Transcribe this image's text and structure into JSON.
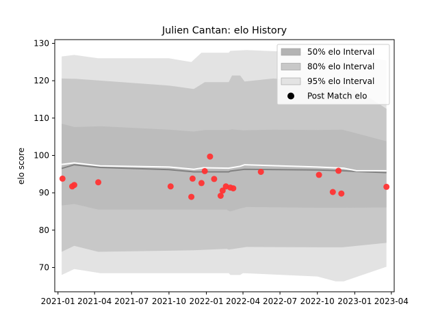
{
  "chart_data": {
    "type": "line",
    "title": "Julien Cantan: elo History",
    "xlabel": "",
    "ylabel": "elo score",
    "xlim": [
      "2020-12-24",
      "2023-04-08"
    ],
    "ylim": [
      63.5,
      131
    ],
    "x_ticks": [
      "2021-01",
      "2021-04",
      "2021-07",
      "2021-10",
      "2022-01",
      "2022-04",
      "2022-07",
      "2022-10",
      "2023-01",
      "2023-04"
    ],
    "y_ticks": [
      70,
      80,
      90,
      100,
      110,
      120,
      130
    ],
    "grid": false,
    "legend_position": "top-right",
    "legend": [
      {
        "label": "50% elo Interval",
        "kind": "patch",
        "color": "#b3b3b3"
      },
      {
        "label": "80% elo Interval",
        "kind": "patch",
        "color": "#c8c8c8"
      },
      {
        "label": "95% elo Interval",
        "kind": "patch",
        "color": "#e3e3e3"
      },
      {
        "label": "Post Match elo",
        "kind": "marker",
        "color": "#000000"
      }
    ],
    "bands": [
      {
        "name": "95% elo Interval",
        "color": "#e3e3e3",
        "opacity": 1,
        "upper": [
          [
            "2021-01-10",
            126.5
          ],
          [
            "2021-02-10",
            126.9
          ],
          [
            "2021-04-10",
            126.0
          ],
          [
            "2021-10-01",
            126.0
          ],
          [
            "2021-11-25",
            125.0
          ],
          [
            "2021-12-20",
            127.5
          ],
          [
            "2022-02-25",
            127.5
          ],
          [
            "2022-03-01",
            128.0
          ],
          [
            "2022-04-10",
            128.2
          ],
          [
            "2022-06-15",
            127.9
          ],
          [
            "2022-10-01",
            127.6
          ],
          [
            "2022-12-10",
            126.5
          ],
          [
            "2023-02-01",
            126.0
          ],
          [
            "2023-03-20",
            125.5
          ]
        ],
        "lower": [
          [
            "2021-01-10",
            68.0
          ],
          [
            "2021-02-10",
            69.6
          ],
          [
            "2021-04-15",
            68.5
          ],
          [
            "2021-12-10",
            68.5
          ],
          [
            "2022-02-25",
            68.5
          ],
          [
            "2022-03-01",
            68.0
          ],
          [
            "2022-03-25",
            68.0
          ],
          [
            "2022-04-01",
            68.5
          ],
          [
            "2022-10-01",
            67.6
          ],
          [
            "2022-11-15",
            66.3
          ],
          [
            "2022-12-05",
            66.3
          ],
          [
            "2023-03-20",
            70.2
          ]
        ]
      },
      {
        "name": "80% elo Interval",
        "color": "#c8c8c8",
        "opacity": 1,
        "upper": [
          [
            "2021-01-10",
            120.6
          ],
          [
            "2021-02-15",
            120.5
          ],
          [
            "2021-10-01",
            118.7
          ],
          [
            "2021-12-01",
            117.8
          ],
          [
            "2021-12-28",
            119.6
          ],
          [
            "2022-02-25",
            119.6
          ],
          [
            "2022-03-05",
            121.4
          ],
          [
            "2022-03-25",
            121.4
          ],
          [
            "2022-04-05",
            119.8
          ],
          [
            "2022-06-15",
            120.6
          ],
          [
            "2022-10-01",
            119.6
          ],
          [
            "2022-12-01",
            118.8
          ],
          [
            "2023-02-01",
            115.8
          ],
          [
            "2023-03-20",
            112.5
          ]
        ],
        "lower": [
          [
            "2021-01-10",
            74.2
          ],
          [
            "2021-02-10",
            75.8
          ],
          [
            "2021-04-10",
            74.2
          ],
          [
            "2021-12-01",
            74.6
          ],
          [
            "2022-02-20",
            75.0
          ],
          [
            "2022-02-25",
            74.8
          ],
          [
            "2022-04-10",
            75.5
          ],
          [
            "2022-10-01",
            75.4
          ],
          [
            "2022-12-01",
            75.4
          ],
          [
            "2023-03-20",
            76.6
          ]
        ]
      },
      {
        "name": "50% elo Interval",
        "color": "#b3b3b3",
        "opacity": 0.55,
        "upper": [
          [
            "2021-01-10",
            108.5
          ],
          [
            "2021-02-10",
            107.6
          ],
          [
            "2021-04-15",
            107.8
          ],
          [
            "2021-10-01",
            106.9
          ],
          [
            "2021-12-01",
            106.4
          ],
          [
            "2021-12-28",
            106.8
          ],
          [
            "2022-02-25",
            106.8
          ],
          [
            "2022-03-05",
            107.0
          ],
          [
            "2022-04-01",
            106.7
          ],
          [
            "2022-06-15",
            106.9
          ],
          [
            "2022-10-01",
            106.8
          ],
          [
            "2022-12-01",
            106.9
          ],
          [
            "2023-03-20",
            103.8
          ]
        ],
        "lower": [
          [
            "2021-01-10",
            86.6
          ],
          [
            "2021-02-10",
            87.0
          ],
          [
            "2021-04-10",
            85.5
          ],
          [
            "2021-12-01",
            85.5
          ],
          [
            "2022-02-20",
            85.5
          ],
          [
            "2022-02-28",
            85.0
          ],
          [
            "2022-03-25",
            85.8
          ],
          [
            "2022-04-10",
            86.2
          ],
          [
            "2022-10-01",
            86.0
          ],
          [
            "2022-12-01",
            86.0
          ],
          [
            "2023-03-20",
            86.1
          ]
        ]
      }
    ],
    "series": [
      {
        "name": "",
        "kind": "line",
        "color": "#808080",
        "points": [
          [
            "2021-01-10",
            96.5
          ],
          [
            "2021-02-10",
            97.5
          ],
          [
            "2021-04-15",
            96.8
          ],
          [
            "2021-10-01",
            96.2
          ],
          [
            "2021-12-01",
            95.6
          ],
          [
            "2022-02-25",
            95.6
          ],
          [
            "2022-03-01",
            95.8
          ],
          [
            "2022-04-05",
            96.3
          ],
          [
            "2022-10-01",
            96.1
          ],
          [
            "2022-12-01",
            95.9
          ],
          [
            "2023-02-01",
            95.6
          ],
          [
            "2023-03-20",
            95.4
          ]
        ]
      },
      {
        "name": "",
        "kind": "line",
        "color": "#ffffff",
        "points": [
          [
            "2021-01-10",
            97.6
          ],
          [
            "2021-02-10",
            98.0
          ],
          [
            "2021-04-15",
            97.2
          ],
          [
            "2021-10-01",
            96.9
          ],
          [
            "2021-12-01",
            96.3
          ],
          [
            "2021-12-25",
            96.7
          ],
          [
            "2022-02-25",
            96.6
          ],
          [
            "2022-03-25",
            97.1
          ],
          [
            "2022-04-05",
            97.5
          ],
          [
            "2022-10-01",
            96.9
          ],
          [
            "2022-12-05",
            96.6
          ],
          [
            "2023-01-05",
            95.9
          ],
          [
            "2023-03-20",
            95.9
          ]
        ]
      },
      {
        "name": "Post Match elo",
        "kind": "scatter",
        "color": "#ff3333",
        "points": [
          [
            "2021-01-12",
            93.8
          ],
          [
            "2021-02-05",
            91.7
          ],
          [
            "2021-02-10",
            92.1
          ],
          [
            "2021-04-10",
            92.8
          ],
          [
            "2021-10-05",
            91.7
          ],
          [
            "2021-11-25",
            88.9
          ],
          [
            "2021-11-28",
            93.8
          ],
          [
            "2021-12-20",
            92.6
          ],
          [
            "2021-12-28",
            95.8
          ],
          [
            "2022-01-10",
            99.7
          ],
          [
            "2022-01-20",
            93.7
          ],
          [
            "2022-02-05",
            89.2
          ],
          [
            "2022-02-10",
            90.6
          ],
          [
            "2022-02-18",
            91.7
          ],
          [
            "2022-03-01",
            91.4
          ],
          [
            "2022-03-08",
            91.2
          ],
          [
            "2022-05-15",
            95.6
          ],
          [
            "2022-10-05",
            94.8
          ],
          [
            "2022-11-08",
            90.2
          ],
          [
            "2022-11-22",
            95.9
          ],
          [
            "2022-11-29",
            89.8
          ],
          [
            "2023-03-20",
            91.6
          ]
        ]
      }
    ]
  }
}
